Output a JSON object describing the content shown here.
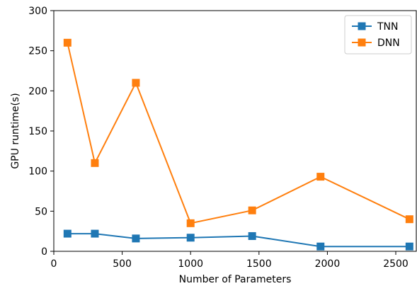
{
  "chart_data": {
    "type": "line",
    "title": "",
    "xlabel": "Number of Parameters",
    "ylabel": "GPU runtime(s)",
    "xlim": [
      0,
      2650
    ],
    "ylim": [
      0,
      300
    ],
    "xticks": [
      0,
      500,
      1000,
      1500,
      2000,
      2500
    ],
    "yticks": [
      0,
      50,
      100,
      150,
      200,
      250,
      300
    ],
    "x": [
      100,
      300,
      600,
      1000,
      1450,
      1950,
      2600
    ],
    "series": [
      {
        "name": "TNN",
        "color": "#1f77b4",
        "marker": "square",
        "values": [
          22,
          22,
          16,
          17,
          19,
          6,
          6
        ]
      },
      {
        "name": "DNN",
        "color": "#ff7f0e",
        "marker": "square",
        "values": [
          260,
          110,
          210,
          35,
          51,
          93,
          40
        ]
      }
    ],
    "grid": false,
    "legend_position": "top-right"
  }
}
